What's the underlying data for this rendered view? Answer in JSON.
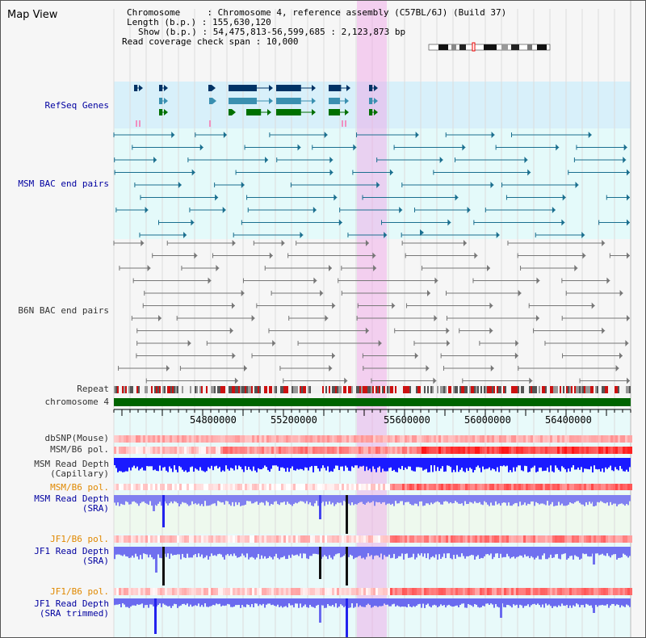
{
  "page": {
    "title": "Map View"
  },
  "info": {
    "chromosome": "Chromosome     : Chromosome 4, reference assembly (C57BL/6J) (Build 37)",
    "length": "Length (b.p.) : 155,630,120",
    "show": "Show (b.p.) : 54,475,813-56,599,685 : 2,123,873 bp",
    "coverage": "Read coverage check span : 10,000"
  },
  "tracks": {
    "refseq": "RefSeq Genes",
    "msm_bac": "MSM BAC end pairs",
    "b6n_bac": "B6N BAC end pairs",
    "repeat": "Repeat",
    "chromosome": "chromosome 4",
    "dbsnp": "dbSNP(Mouse)",
    "msm_b6_pol": "MSM/B6 pol.",
    "msm_depth_cap_1": "MSM Read Depth",
    "msm_depth_cap_2": "(Capillary)",
    "msm_b6_pol2": "MSM/B6 pol.",
    "msm_depth_sra_1": "MSM Read Depth",
    "msm_depth_sra_2": "(SRA)",
    "jf1_pol": "JF1/B6 pol.",
    "jf1_depth_sra_1": "JF1 Read Depth",
    "jf1_depth_sra_2": "(SRA)",
    "jf1_pol2": "JF1/B6 pol.",
    "jf1_depth_trim_1": "JF1 Read Depth",
    "jf1_depth_trim_2": "(SRA trimmed)"
  },
  "ruler": {
    "ticks": [
      "54800000",
      "55200000",
      "55600000",
      "56000000",
      "56400000"
    ]
  },
  "colors": {
    "navy_label": "#0000a0",
    "orange_label": "#e08800",
    "highlight": "#f0a0e6",
    "chromosome_bar": "#006400"
  }
}
